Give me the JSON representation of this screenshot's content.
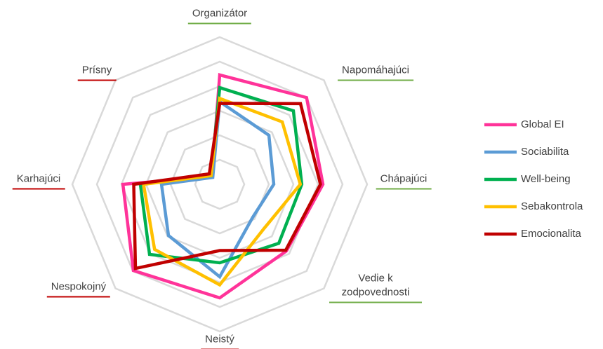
{
  "chart_data": {
    "type": "radar",
    "categories": [
      "Organizátor",
      "Napomáhajúci",
      "Chápajúci",
      "Vedie k zodpovednosti",
      "Neistý",
      "Nespokojný",
      "Karhajúci",
      "Prísny"
    ],
    "category_underline_colors": [
      "#70ad47",
      "#70ad47",
      "#70ad47",
      "#70ad47",
      "#c00000",
      "#c00000",
      "#c00000",
      "#c00000"
    ],
    "rlim": [
      0,
      6
    ],
    "rticks": [
      1,
      2,
      3,
      4,
      5,
      6
    ],
    "grid": true,
    "legend": "right",
    "series": [
      {
        "name": "Global EI",
        "color": "#ff3399",
        "values": [
          4.46,
          5.0,
          4.2,
          3.84,
          4.63,
          4.97,
          3.94,
          0.45
        ]
      },
      {
        "name": "Sociabilita",
        "color": "#5b9bd5",
        "values": [
          3.37,
          2.83,
          2.2,
          1.9,
          3.77,
          2.95,
          2.37,
          0.4
        ]
      },
      {
        "name": "Well-being",
        "color": "#00b050",
        "values": [
          3.94,
          4.24,
          3.34,
          3.4,
          3.2,
          4.04,
          3.23,
          0.5
        ]
      },
      {
        "name": "Sebakontrola",
        "color": "#ffc000",
        "values": [
          3.5,
          3.6,
          3.28,
          2.55,
          4.1,
          3.75,
          3.1,
          0.5
        ]
      },
      {
        "name": "Emocionalita",
        "color": "#c00000",
        "values": [
          3.3,
          4.65,
          4.1,
          3.8,
          2.7,
          4.85,
          3.5,
          0.6
        ]
      }
    ]
  }
}
